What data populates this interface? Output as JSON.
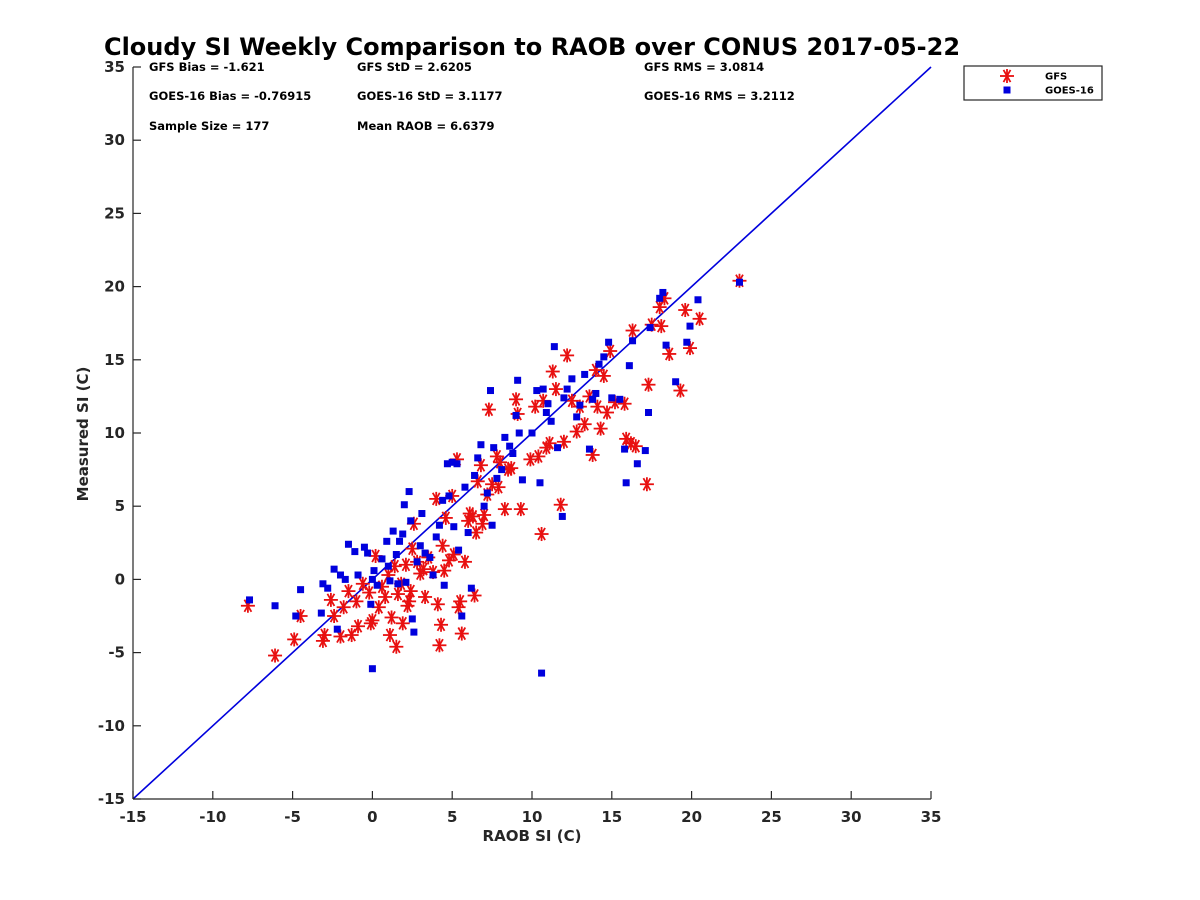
{
  "chart_data": {
    "type": "scatter",
    "title": "Cloudy SI Weekly Comparison to RAOB over CONUS 2017-05-22",
    "xlabel": "RAOB SI (C)",
    "ylabel": "Measured SI (C)",
    "xlim": [
      -15,
      35
    ],
    "ylim": [
      -15,
      35
    ],
    "xticks": [
      "-15",
      "-10",
      "-5",
      "0",
      "5",
      "10",
      "15",
      "20",
      "25",
      "30",
      "35"
    ],
    "yticks": [
      "-15",
      "-10",
      "-5",
      "0",
      "5",
      "10",
      "15",
      "20",
      "25",
      "30",
      "35"
    ],
    "grid": false,
    "legend_position": "top-right",
    "stats": [
      [
        "GFS Bias = -1.621",
        "GFS StD = 2.6205",
        "GFS RMS = 3.0814"
      ],
      [
        "GOES-16 Bias = -0.76915",
        "GOES-16 StD = 3.1177",
        "GOES-16 RMS = 3.2112"
      ],
      [
        "Sample Size = 177",
        "Mean RAOB = 6.6379"
      ]
    ],
    "reference_line": {
      "x": [
        -15,
        35
      ],
      "y": [
        -15,
        35
      ],
      "color": "#0000dd"
    },
    "series": [
      {
        "name": "GFS",
        "marker": "asterisk",
        "color": "#e81010",
        "points": [
          [
            -7.8,
            -1.8
          ],
          [
            -6.1,
            -5.2
          ],
          [
            -4.9,
            -4.1
          ],
          [
            -4.5,
            -2.5
          ],
          [
            -3.1,
            -4.2
          ],
          [
            -3.0,
            -3.8
          ],
          [
            -2.6,
            -1.4
          ],
          [
            -2.4,
            -2.5
          ],
          [
            -2.0,
            -3.9
          ],
          [
            -1.8,
            -1.9
          ],
          [
            -1.5,
            -0.8
          ],
          [
            -1.3,
            -3.8
          ],
          [
            -1.0,
            -1.5
          ],
          [
            -0.9,
            -3.2
          ],
          [
            -0.6,
            -0.3
          ],
          [
            -0.2,
            -0.9
          ],
          [
            -0.1,
            -3.0
          ],
          [
            0.0,
            -2.8
          ],
          [
            0.2,
            1.6
          ],
          [
            0.4,
            -1.9
          ],
          [
            0.6,
            -0.5
          ],
          [
            0.8,
            -1.2
          ],
          [
            1.0,
            0.3
          ],
          [
            1.1,
            -3.8
          ],
          [
            1.2,
            -2.6
          ],
          [
            1.4,
            0.9
          ],
          [
            1.5,
            -4.6
          ],
          [
            1.6,
            -1.0
          ],
          [
            1.8,
            -0.3
          ],
          [
            1.9,
            -3.0
          ],
          [
            2.1,
            1.0
          ],
          [
            2.2,
            -1.8
          ],
          [
            2.3,
            -1.5
          ],
          [
            2.4,
            -0.8
          ],
          [
            2.5,
            2.1
          ],
          [
            2.6,
            3.8
          ],
          [
            2.8,
            1.2
          ],
          [
            3.0,
            0.4
          ],
          [
            3.2,
            0.7
          ],
          [
            3.3,
            -1.2
          ],
          [
            3.5,
            1.5
          ],
          [
            3.8,
            0.5
          ],
          [
            4.0,
            5.5
          ],
          [
            4.1,
            -1.7
          ],
          [
            4.2,
            -4.5
          ],
          [
            4.3,
            -3.1
          ],
          [
            4.4,
            2.3
          ],
          [
            4.5,
            0.6
          ],
          [
            4.6,
            4.2
          ],
          [
            4.8,
            1.3
          ],
          [
            5.0,
            5.7
          ],
          [
            5.1,
            1.7
          ],
          [
            5.3,
            8.2
          ],
          [
            5.4,
            -1.9
          ],
          [
            5.5,
            -1.5
          ],
          [
            5.6,
            -3.7
          ],
          [
            5.8,
            1.2
          ],
          [
            6.0,
            4.0
          ],
          [
            6.1,
            4.5
          ],
          [
            6.3,
            4.3
          ],
          [
            6.4,
            -1.1
          ],
          [
            6.5,
            3.2
          ],
          [
            6.6,
            6.7
          ],
          [
            6.8,
            7.8
          ],
          [
            6.9,
            3.8
          ],
          [
            7.0,
            4.4
          ],
          [
            7.2,
            5.8
          ],
          [
            7.3,
            11.6
          ],
          [
            7.5,
            6.5
          ],
          [
            7.8,
            8.4
          ],
          [
            7.9,
            6.3
          ],
          [
            8.0,
            8.0
          ],
          [
            8.3,
            4.8
          ],
          [
            8.5,
            7.5
          ],
          [
            8.7,
            7.6
          ],
          [
            9.0,
            12.3
          ],
          [
            9.1,
            11.3
          ],
          [
            9.3,
            4.8
          ],
          [
            9.9,
            8.2
          ],
          [
            10.2,
            11.8
          ],
          [
            10.4,
            8.4
          ],
          [
            10.6,
            3.1
          ],
          [
            10.7,
            12.2
          ],
          [
            10.9,
            9.0
          ],
          [
            11.1,
            9.3
          ],
          [
            11.3,
            14.2
          ],
          [
            11.5,
            13.0
          ],
          [
            11.8,
            5.1
          ],
          [
            12.0,
            9.4
          ],
          [
            12.2,
            15.3
          ],
          [
            12.5,
            12.2
          ],
          [
            12.8,
            10.1
          ],
          [
            13.0,
            11.8
          ],
          [
            13.3,
            10.6
          ],
          [
            13.6,
            12.5
          ],
          [
            13.8,
            8.5
          ],
          [
            14.0,
            14.3
          ],
          [
            14.1,
            11.8
          ],
          [
            14.3,
            10.3
          ],
          [
            14.5,
            13.9
          ],
          [
            14.7,
            11.4
          ],
          [
            14.9,
            15.6
          ],
          [
            15.2,
            12.1
          ],
          [
            15.8,
            12.0
          ],
          [
            15.9,
            9.6
          ],
          [
            16.2,
            9.3
          ],
          [
            16.3,
            17.0
          ],
          [
            16.5,
            9.1
          ],
          [
            17.2,
            6.5
          ],
          [
            17.3,
            13.3
          ],
          [
            17.5,
            17.4
          ],
          [
            18.0,
            18.6
          ],
          [
            18.1,
            17.3
          ],
          [
            18.3,
            19.2
          ],
          [
            18.6,
            15.4
          ],
          [
            19.3,
            12.9
          ],
          [
            19.6,
            18.4
          ],
          [
            19.9,
            15.8
          ],
          [
            20.5,
            17.8
          ],
          [
            23.0,
            20.4
          ]
        ]
      },
      {
        "name": "GOES-16",
        "marker": "square",
        "color": "#0000dd",
        "points": [
          [
            -7.7,
            -1.4
          ],
          [
            -6.1,
            -1.8
          ],
          [
            -4.8,
            -2.5
          ],
          [
            -4.5,
            -0.7
          ],
          [
            -3.2,
            -2.3
          ],
          [
            -3.1,
            -0.3
          ],
          [
            -2.8,
            -0.6
          ],
          [
            -2.4,
            0.7
          ],
          [
            -2.2,
            -3.4
          ],
          [
            -2.0,
            0.3
          ],
          [
            -1.7,
            0.0
          ],
          [
            -1.5,
            2.4
          ],
          [
            -1.1,
            1.9
          ],
          [
            -0.9,
            0.3
          ],
          [
            -0.5,
            2.2
          ],
          [
            -0.3,
            1.8
          ],
          [
            -0.1,
            -1.7
          ],
          [
            0.0,
            -6.1
          ],
          [
            0.0,
            0.0
          ],
          [
            0.1,
            0.6
          ],
          [
            0.3,
            -0.4
          ],
          [
            0.6,
            1.4
          ],
          [
            0.9,
            2.6
          ],
          [
            1.0,
            0.9
          ],
          [
            1.1,
            -0.1
          ],
          [
            1.3,
            3.3
          ],
          [
            1.5,
            1.7
          ],
          [
            1.6,
            -0.3
          ],
          [
            1.7,
            2.6
          ],
          [
            1.9,
            3.1
          ],
          [
            2.0,
            5.1
          ],
          [
            2.1,
            -0.2
          ],
          [
            2.3,
            6.0
          ],
          [
            2.4,
            4.0
          ],
          [
            2.5,
            -2.7
          ],
          [
            2.6,
            -3.6
          ],
          [
            2.8,
            1.2
          ],
          [
            3.0,
            2.3
          ],
          [
            3.1,
            4.5
          ],
          [
            3.3,
            1.8
          ],
          [
            3.6,
            1.5
          ],
          [
            3.8,
            0.3
          ],
          [
            4.0,
            2.9
          ],
          [
            4.2,
            3.7
          ],
          [
            4.4,
            5.4
          ],
          [
            4.5,
            -0.4
          ],
          [
            4.7,
            7.9
          ],
          [
            4.8,
            5.7
          ],
          [
            5.0,
            8.0
          ],
          [
            5.1,
            3.6
          ],
          [
            5.3,
            7.9
          ],
          [
            5.4,
            2.0
          ],
          [
            5.6,
            -2.5
          ],
          [
            5.8,
            6.3
          ],
          [
            6.0,
            3.2
          ],
          [
            6.2,
            -0.6
          ],
          [
            6.4,
            7.1
          ],
          [
            6.6,
            8.3
          ],
          [
            6.8,
            9.2
          ],
          [
            7.0,
            5.0
          ],
          [
            7.2,
            5.9
          ],
          [
            7.4,
            12.9
          ],
          [
            7.5,
            3.7
          ],
          [
            7.6,
            9.0
          ],
          [
            7.8,
            6.9
          ],
          [
            8.1,
            7.5
          ],
          [
            8.3,
            9.7
          ],
          [
            8.6,
            9.1
          ],
          [
            8.8,
            8.6
          ],
          [
            9.0,
            11.2
          ],
          [
            9.1,
            13.6
          ],
          [
            9.2,
            10.0
          ],
          [
            9.4,
            6.8
          ],
          [
            10.0,
            10.0
          ],
          [
            10.3,
            12.9
          ],
          [
            10.5,
            6.6
          ],
          [
            10.6,
            -6.4
          ],
          [
            10.7,
            13.0
          ],
          [
            10.9,
            11.4
          ],
          [
            11.0,
            12.0
          ],
          [
            11.2,
            10.8
          ],
          [
            11.4,
            15.9
          ],
          [
            11.6,
            9.0
          ],
          [
            11.9,
            4.3
          ],
          [
            12.0,
            12.4
          ],
          [
            12.2,
            13.0
          ],
          [
            12.5,
            13.7
          ],
          [
            12.8,
            11.1
          ],
          [
            13.0,
            11.9
          ],
          [
            13.3,
            14.0
          ],
          [
            13.6,
            8.9
          ],
          [
            13.8,
            12.3
          ],
          [
            14.0,
            12.7
          ],
          [
            14.2,
            14.7
          ],
          [
            14.5,
            15.2
          ],
          [
            14.8,
            16.2
          ],
          [
            15.0,
            12.4
          ],
          [
            15.5,
            12.3
          ],
          [
            15.8,
            8.9
          ],
          [
            15.9,
            6.6
          ],
          [
            16.1,
            14.6
          ],
          [
            16.3,
            16.3
          ],
          [
            16.6,
            7.9
          ],
          [
            17.1,
            8.8
          ],
          [
            17.3,
            11.4
          ],
          [
            17.4,
            17.2
          ],
          [
            18.0,
            19.2
          ],
          [
            18.2,
            19.6
          ],
          [
            18.4,
            16.0
          ],
          [
            19.0,
            13.5
          ],
          [
            19.7,
            16.2
          ],
          [
            19.9,
            17.3
          ],
          [
            20.4,
            19.1
          ],
          [
            23.0,
            20.3
          ]
        ]
      }
    ]
  }
}
